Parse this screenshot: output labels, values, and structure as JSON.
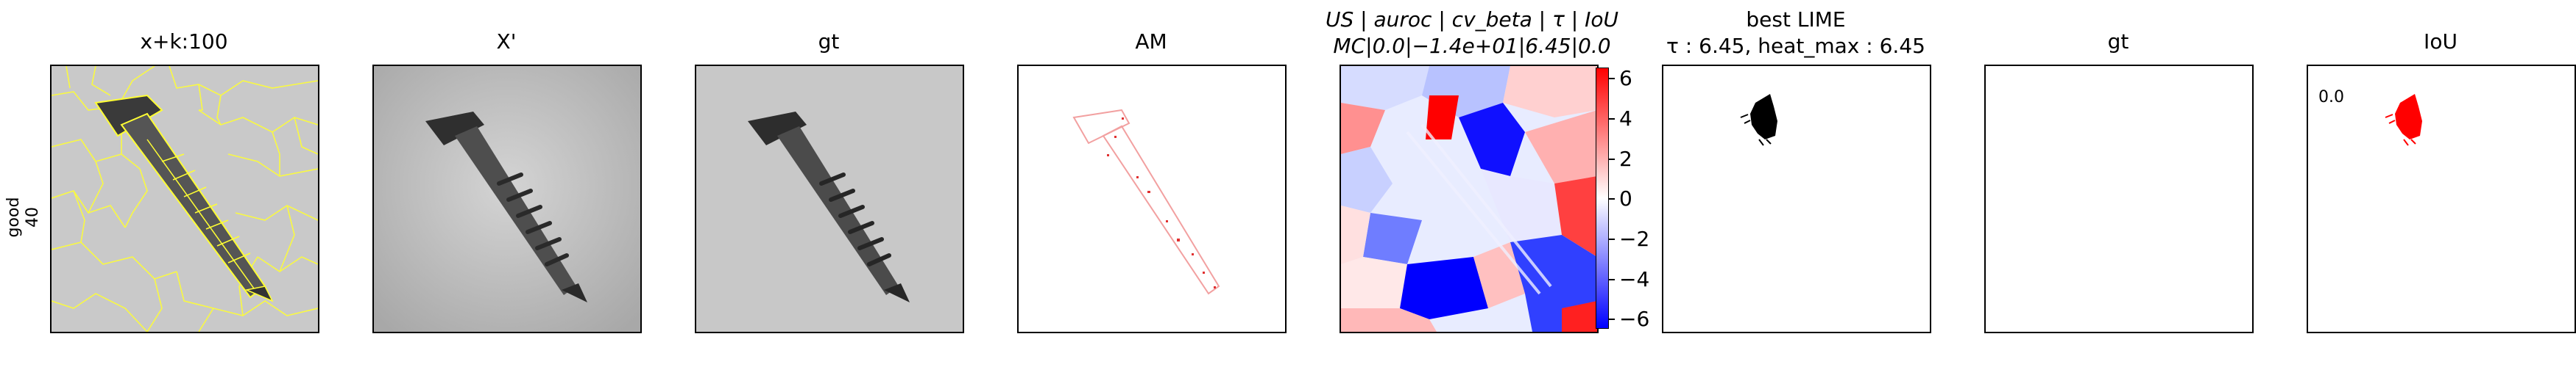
{
  "row_label": [
    "good",
    "40"
  ],
  "panels": [
    {
      "title": "x+k:100"
    },
    {
      "title": "X'"
    },
    {
      "title": "gt"
    },
    {
      "title": "AM"
    },
    {
      "title_line1": "US | auroc | cv_beta | τ | IoU",
      "title_line2": "MC|0.0|−1.4e+01|6.45|0.0"
    },
    {
      "title_line1": "best LIME",
      "title_line2": "τ : 6.45, heat_max : 6.45"
    },
    {
      "title": "gt"
    },
    {
      "title": "IoU",
      "overlay": "0.0"
    }
  ],
  "colorbar": {
    "ticks": [
      "6",
      "4",
      "2",
      "0",
      "−2",
      "−4",
      "−6"
    ],
    "range": [
      -6.45,
      6.45
    ],
    "colors": {
      "top": "#ff0000",
      "mid": "#ffffff",
      "bottom": "#0000ff"
    }
  }
}
